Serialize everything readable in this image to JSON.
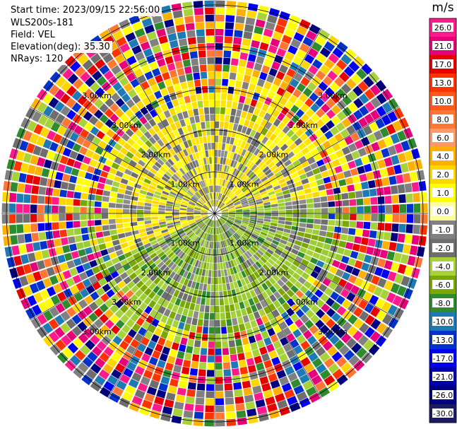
{
  "info": {
    "start_time": "Start time: 2023/09/15 22:56:00",
    "instrument": "WLS200s-181",
    "field": "Field: VEL",
    "elevation": "Elevation(deg): 35.30",
    "nrays": "NRays: 120"
  },
  "range_rings": [
    {
      "label": "1.00km"
    },
    {
      "label": "2.00km"
    },
    {
      "label": "3.00km"
    }
  ],
  "colorbar": {
    "unit": "m/s",
    "ticks": [
      "26.0",
      "21.0",
      "17.0",
      "13.0",
      "10.0",
      "8.0",
      "6.0",
      "4.0",
      "2.0",
      "1.0",
      "0.0",
      "-1.0",
      "-2.0",
      "-4.0",
      "-6.0",
      "-8.0",
      "-10.0",
      "-13.0",
      "-17.0",
      "-21.0",
      "-26.0",
      "-30.0"
    ],
    "colors": [
      "#ff1a8c",
      "#e6007a",
      "#e60000",
      "#ff3300",
      "#ff5a1a",
      "#ff7733",
      "#ff9966",
      "#ffb000",
      "#ffd700",
      "#ffff00",
      "#ffff99",
      "#808080",
      "#6e6e6e",
      "#a8d23a",
      "#7aa800",
      "#2e8b2e",
      "#1e7ab4",
      "#0033cc",
      "#0000ee",
      "#0000aa",
      "#000080",
      "#1a1a66"
    ]
  }
}
